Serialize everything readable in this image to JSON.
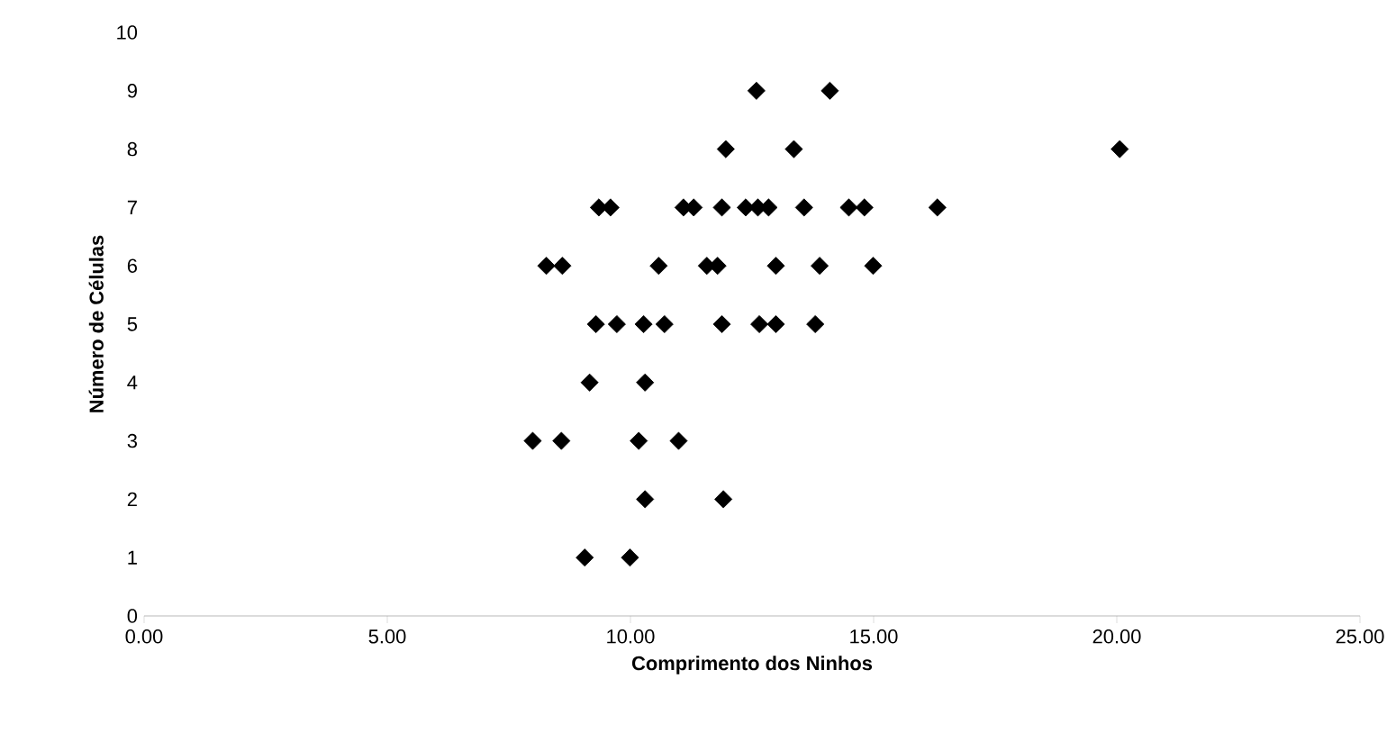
{
  "chart_data": {
    "type": "scatter",
    "xlabel": "Comprimento dos Ninhos",
    "ylabel": "Número de Células",
    "x": [
      12.59,
      14.1,
      20.06,
      11.96,
      13.36,
      9.35,
      9.59,
      11.09,
      11.3,
      11.88,
      12.37,
      12.62,
      12.84,
      13.57,
      14.49,
      14.81,
      16.31,
      8.27,
      8.6,
      10.58,
      11.57,
      11.79,
      12.99,
      13.89,
      14.99,
      9.29,
      9.72,
      10.27,
      10.7,
      11.78,
      11.88,
      12.65,
      12.99,
      13.8,
      9.16,
      10.3,
      7.99,
      8.58,
      10.17,
      10.99,
      10.3,
      11.91,
      9.06,
      9.99
    ],
    "values": [
      9,
      9,
      8,
      8,
      8,
      7,
      7,
      7,
      7,
      7,
      7,
      7,
      7,
      7,
      7,
      7,
      7,
      6,
      6,
      6,
      6,
      6,
      6,
      6,
      6,
      5,
      5,
      5,
      5,
      null,
      5,
      5,
      5,
      5,
      4,
      4,
      3,
      3,
      3,
      3,
      2,
      2,
      1,
      1
    ],
    "color": "#000000",
    "marker": "diamond",
    "xlim": [
      0,
      25
    ],
    "ylim": [
      0,
      10
    ],
    "xticks": [
      {
        "value": 0,
        "label": "0.00"
      },
      {
        "value": 5,
        "label": "5.00"
      },
      {
        "value": 10,
        "label": "10.00"
      },
      {
        "value": 15,
        "label": "15.00"
      },
      {
        "value": 20,
        "label": "20.00"
      },
      {
        "value": 25,
        "label": "25.00"
      }
    ],
    "yticks": [
      0,
      1,
      2,
      3,
      4,
      5,
      6,
      7,
      8,
      9,
      10
    ]
  }
}
